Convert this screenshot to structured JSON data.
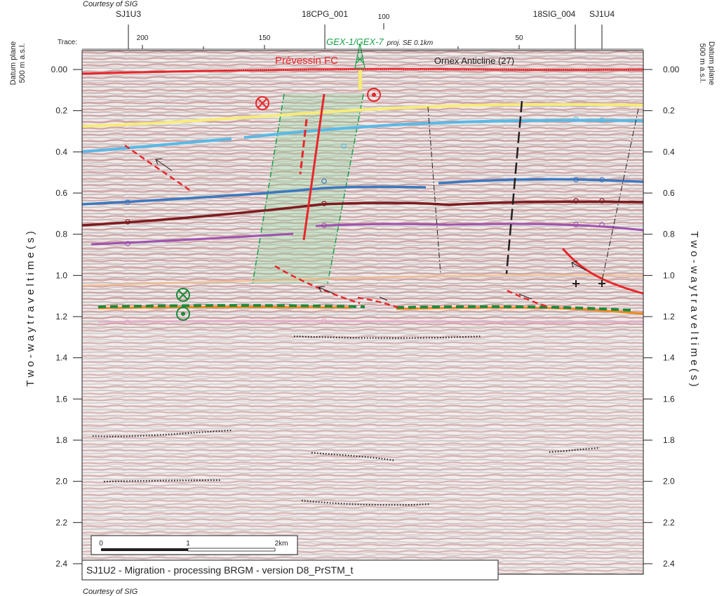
{
  "credits": {
    "top": "Courtesy of SIG",
    "bottom": "Courtesy of SIG"
  },
  "top_axis": {
    "trace_label": "Trace:",
    "trace_ticks": [
      "200",
      "150",
      "100",
      "50"
    ],
    "wells": [
      "SJ1U3",
      "18CPG_001",
      "18SIG_004",
      "SJ1U4"
    ]
  },
  "well_projection": {
    "name": "GEX-1/GEX-7",
    "note": "proj. SE 0.1km"
  },
  "annotations": {
    "fault": "Prévessin FC",
    "anticline": "Ornex Anticline (27)"
  },
  "datum": {
    "left": [
      "Datum plane",
      "500 m a.s.l."
    ],
    "right": [
      "Datum plane",
      "500 m a.s.l."
    ]
  },
  "y_axis": {
    "left_title": "T w o - w a y   t r a v e l t i m e   ( s )",
    "right_title": "T w o - w a y   t r a v e l t i m e   ( s )",
    "ticks": [
      "0.00",
      "0.2",
      "0.4",
      "0.6",
      "0.8",
      "1.0",
      "1.2",
      "1.4",
      "1.6",
      "1.8",
      "2.0",
      "2.2",
      "2.4"
    ],
    "range": [
      0,
      2.4
    ]
  },
  "scale_bar": {
    "labels": [
      "0",
      "1",
      "2km"
    ]
  },
  "caption": "SJ1U2 - Migration - processing BRGM - version D8_PrSTM_t",
  "colors": {
    "fault": "#e8262b",
    "horizon_yellow": "#f7ec7a",
    "horizon_cyan": "#5ab9e6",
    "horizon_blue": "#3c78c0",
    "horizon_maroon": "#7d1c1f",
    "horizon_purple": "#a052b0",
    "horizon_orange": "#f08a1e",
    "detachment_green": "#1e8a3a",
    "well_green": "#19a04b",
    "highlight_green": "#8fd49a"
  },
  "symbols": {
    "fault_motion": [
      "into-page",
      "out-of-page"
    ],
    "detachment_motion": [
      "into-page",
      "out-of-page"
    ]
  }
}
